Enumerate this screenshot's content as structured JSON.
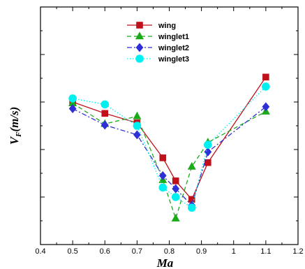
{
  "chart_data": {
    "type": "line",
    "title": "",
    "xlabel": "Ma",
    "ylabel_main": "V",
    "ylabel_sub": "F",
    "ylabel_unit": "(m/s)",
    "xlim": [
      0.4,
      1.2
    ],
    "ylim": [
      0,
      1
    ],
    "x_ticks": [
      "0.4",
      "0.5",
      "0.6",
      "0.7",
      "0.8",
      "0.9",
      "1",
      "1.1",
      "1.2"
    ],
    "y_tick_labels_visible": false,
    "grid": false,
    "legend_position": "top-center",
    "series": [
      {
        "name": "wing",
        "color": "#c0101a",
        "marker": "square",
        "dash": "solid",
        "x": [
          0.5,
          0.6,
          0.7,
          0.78,
          0.82,
          0.87,
          0.92,
          1.1
        ],
        "y": [
          0.6,
          0.552,
          0.512,
          0.365,
          0.268,
          0.19,
          0.345,
          0.705
        ]
      },
      {
        "name": "winglet1",
        "color": "#1aaa1a",
        "marker": "triangle",
        "dash": "dashed",
        "x": [
          0.5,
          0.6,
          0.7,
          0.78,
          0.82,
          0.87,
          0.92,
          1.1
        ],
        "y": [
          0.595,
          0.508,
          0.54,
          0.272,
          0.11,
          0.328,
          0.43,
          0.56
        ]
      },
      {
        "name": "winglet2",
        "color": "#2f2fd8",
        "marker": "diamond",
        "dash": "dashdot",
        "x": [
          0.5,
          0.6,
          0.7,
          0.78,
          0.82,
          0.87,
          0.92,
          1.1
        ],
        "y": [
          0.572,
          0.503,
          0.462,
          0.29,
          0.235,
          0.165,
          0.39,
          0.58
        ]
      },
      {
        "name": "winglet3",
        "color": "#00f0f0",
        "marker": "circle",
        "dash": "dotted",
        "x": [
          0.5,
          0.6,
          0.7,
          0.78,
          0.82,
          0.87,
          0.92,
          1.1
        ],
        "y": [
          0.615,
          0.59,
          0.5,
          0.24,
          0.2,
          0.155,
          0.42,
          0.665
        ]
      }
    ]
  }
}
